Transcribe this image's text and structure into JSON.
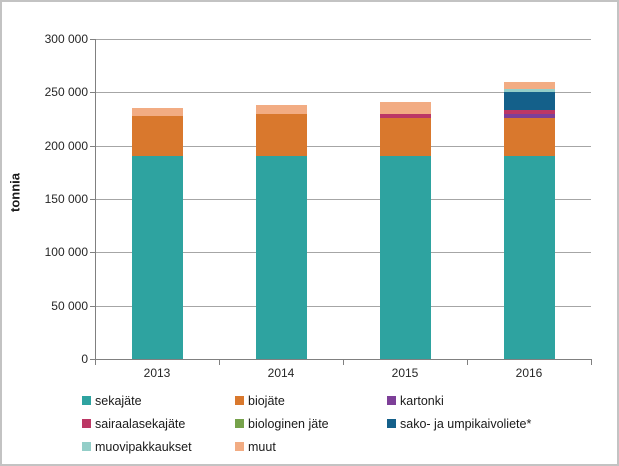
{
  "chart_data": {
    "type": "bar",
    "stacked": true,
    "title": "",
    "xlabel": "",
    "ylabel": "tonnia",
    "categories": [
      "2013",
      "2014",
      "2015",
      "2016"
    ],
    "series": [
      {
        "name": "sekajäte",
        "color": "#2ea3a0",
        "values": [
          190000,
          190000,
          190000,
          190000
        ]
      },
      {
        "name": "biojäte",
        "color": "#d9782d",
        "values": [
          38000,
          40000,
          36000,
          36000
        ]
      },
      {
        "name": "kartonki",
        "color": "#7d3f98",
        "values": [
          0,
          0,
          0,
          4000
        ]
      },
      {
        "name": "sairaalasekajäte",
        "color": "#bc3765",
        "values": [
          0,
          0,
          4000,
          3000
        ]
      },
      {
        "name": "biologinen jäte",
        "color": "#76a24b",
        "values": [
          0,
          0,
          0,
          0
        ]
      },
      {
        "name": "sako- ja umpikaivoliete*",
        "color": "#14608a",
        "values": [
          0,
          0,
          0,
          17000
        ]
      },
      {
        "name": "muovipakkaukset",
        "color": "#93cec8",
        "values": [
          0,
          0,
          0,
          3000
        ]
      },
      {
        "name": "muut",
        "color": "#f2ac83",
        "values": [
          7000,
          8000,
          11000,
          7000
        ]
      }
    ],
    "ylim": [
      0,
      300000
    ],
    "ytick_step": 50000,
    "ytick_labels": [
      "0",
      "50 000",
      "100 000",
      "150 000",
      "200 000",
      "250 000",
      "300 000"
    ],
    "grid": true,
    "legend_position": "bottom",
    "colors": {
      "gridline": "#a6a6a6",
      "axis": "#808080",
      "frame_border": "#c3c3c3",
      "text": "#262626"
    }
  }
}
